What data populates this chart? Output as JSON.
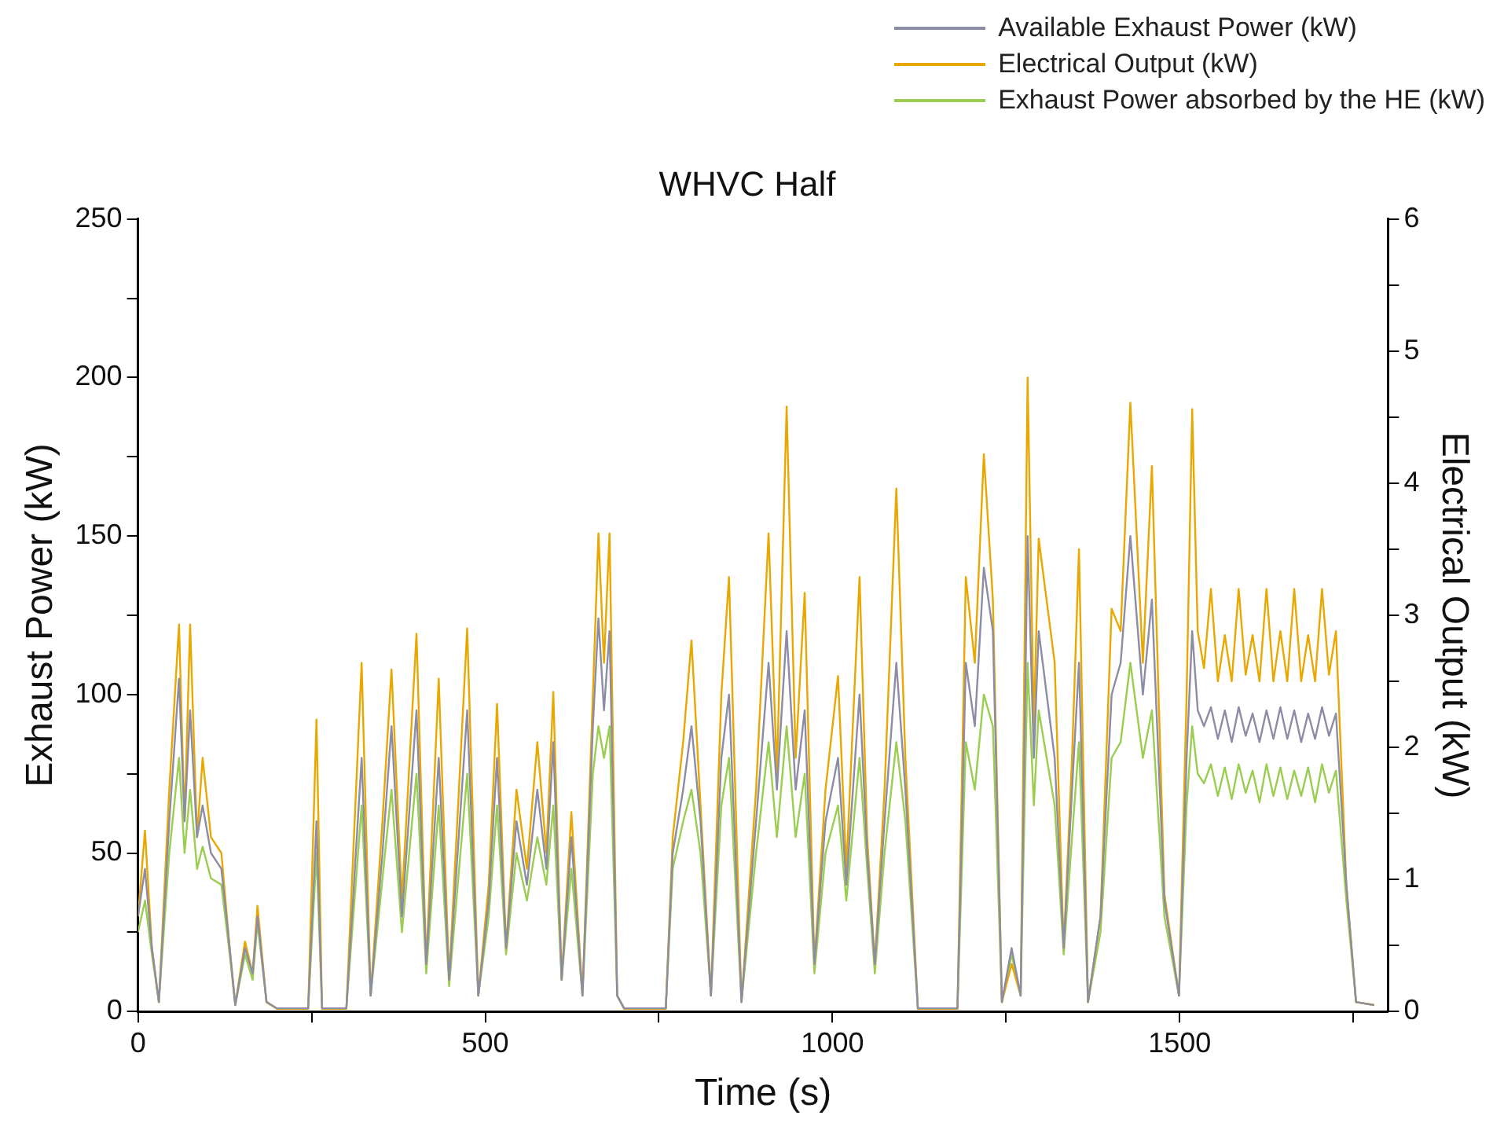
{
  "chart_data": {
    "type": "line",
    "title": "WHVC Half",
    "xlabel": "Time (s)",
    "ylabel": "Exhaust Power (kW)",
    "y2label": "Electrical Output (kW)",
    "legend": "top right",
    "grid": false,
    "marker": "none",
    "line_style": "solid",
    "xlim": [
      0,
      1800
    ],
    "xticks": [
      0,
      {
        "value": 250,
        "label": null
      },
      500,
      {
        "value": 750,
        "label": null
      },
      1000,
      {
        "value": 1250,
        "label": null
      },
      1500,
      {
        "value": 1750,
        "label": null
      }
    ],
    "ylim": [
      0,
      250
    ],
    "yticks": [
      0,
      {
        "value": 25,
        "label": null
      },
      50,
      {
        "value": 75,
        "label": null
      },
      100,
      {
        "value": 125,
        "label": null
      },
      150,
      {
        "value": 175,
        "label": null
      },
      200,
      {
        "value": 225,
        "label": null
      },
      250
    ],
    "y2lim": [
      0,
      6
    ],
    "y2ticks": [
      0,
      {
        "value": 0.5,
        "label": null
      },
      1,
      {
        "value": 1.5,
        "label": null
      },
      2,
      {
        "value": 2.5,
        "label": null
      },
      3,
      {
        "value": 3.5,
        "label": null
      },
      4,
      {
        "value": 4.5,
        "label": null
      },
      5,
      {
        "value": 5.5,
        "label": null
      },
      6
    ],
    "x": [
      0,
      10,
      20,
      30,
      45,
      59,
      67,
      75,
      85,
      93,
      105,
      120,
      132,
      140,
      154,
      165,
      172,
      185,
      200,
      245,
      257,
      265,
      300,
      322,
      335,
      352,
      365,
      380,
      401,
      415,
      433,
      448,
      474,
      490,
      505,
      517,
      530,
      545,
      560,
      575,
      588,
      598,
      610,
      624,
      640,
      655,
      663,
      671,
      679,
      690,
      700,
      760,
      770,
      785,
      797,
      810,
      825,
      840,
      851,
      869,
      890,
      908,
      920,
      934,
      947,
      960,
      974,
      990,
      1008,
      1020,
      1039,
      1050,
      1061,
      1075,
      1092,
      1105,
      1123,
      1180,
      1192,
      1205,
      1218,
      1231,
      1244,
      1258,
      1271,
      1281,
      1290,
      1297,
      1320,
      1333,
      1345,
      1355,
      1368,
      1386,
      1402,
      1415,
      1429,
      1447,
      1460,
      1478,
      1499,
      1510,
      1518,
      1526,
      1535,
      1545,
      1555,
      1565,
      1575,
      1585,
      1595,
      1605,
      1615,
      1625,
      1635,
      1645,
      1655,
      1665,
      1675,
      1685,
      1695,
      1705,
      1715,
      1725,
      1740,
      1754,
      1780
    ],
    "series": [
      {
        "name": "Available Exhaust Power (kW)",
        "color": "#8c8ca6",
        "values": [
          30,
          45,
          20,
          3,
          60,
          105,
          60,
          95,
          55,
          65,
          50,
          45,
          20,
          2,
          20,
          12,
          30,
          3,
          1,
          1,
          60,
          1,
          1,
          80,
          5,
          50,
          90,
          30,
          95,
          15,
          80,
          10,
          95,
          5,
          35,
          80,
          20,
          60,
          40,
          70,
          45,
          85,
          10,
          55,
          5,
          90,
          124,
          95,
          120,
          5,
          1,
          1,
          50,
          70,
          90,
          60,
          5,
          80,
          100,
          3,
          60,
          110,
          70,
          120,
          70,
          95,
          15,
          60,
          80,
          40,
          100,
          50,
          15,
          60,
          110,
          70,
          1,
          1,
          110,
          90,
          140,
          120,
          3,
          20,
          5,
          150,
          80,
          120,
          80,
          20,
          70,
          110,
          3,
          30,
          100,
          110,
          150,
          100,
          130,
          35,
          5,
          80,
          120,
          95,
          90,
          96,
          86,
          95,
          85,
          96,
          87,
          94,
          85,
          95,
          86,
          96,
          86,
          95,
          85,
          94,
          86,
          96,
          87,
          94,
          40,
          3,
          2
        ]
      },
      {
        "name": "Electrical Output (kW)",
        "color": "#e8a800",
        "axis": "y2",
        "values": [
          0.72,
          1.37,
          0.48,
          0.07,
          1.68,
          2.93,
          1.44,
          2.93,
          1.32,
          1.92,
          1.32,
          1.2,
          0.48,
          0.05,
          0.53,
          0.29,
          0.8,
          0.07,
          0.02,
          0.02,
          2.21,
          0.02,
          0.02,
          2.64,
          0.12,
          1.44,
          2.59,
          0.84,
          2.86,
          0.36,
          2.52,
          0.24,
          2.9,
          0.12,
          0.96,
          2.33,
          0.48,
          1.68,
          1.08,
          2.04,
          1.2,
          2.42,
          0.24,
          1.51,
          0.12,
          2.4,
          3.62,
          2.64,
          3.62,
          0.12,
          0.02,
          0.02,
          1.32,
          2.04,
          2.81,
          1.56,
          0.12,
          2.4,
          3.29,
          0.07,
          1.68,
          3.62,
          1.8,
          4.58,
          1.92,
          3.17,
          0.36,
          1.68,
          2.54,
          1.08,
          3.29,
          1.32,
          0.36,
          1.68,
          3.96,
          1.92,
          0.02,
          0.02,
          3.29,
          2.64,
          4.22,
          3.12,
          0.07,
          0.36,
          0.12,
          4.8,
          2.16,
          3.58,
          2.64,
          0.48,
          1.92,
          3.5,
          0.07,
          0.72,
          3.05,
          2.88,
          4.61,
          2.64,
          4.13,
          0.89,
          0.12,
          2.4,
          4.56,
          2.88,
          2.6,
          3.2,
          2.5,
          2.85,
          2.5,
          3.2,
          2.55,
          2.85,
          2.5,
          3.2,
          2.5,
          2.88,
          2.5,
          3.2,
          2.5,
          2.85,
          2.5,
          3.2,
          2.55,
          2.88,
          0.96,
          0.07,
          0.05
        ]
      },
      {
        "name": "Exhaust Power absorbed by the HE (kW)",
        "color": "#9acd50",
        "values": [
          25,
          35,
          18,
          3,
          50,
          80,
          50,
          70,
          45,
          52,
          42,
          40,
          18,
          2,
          18,
          10,
          28,
          3,
          1,
          1,
          50,
          1,
          1,
          65,
          5,
          42,
          70,
          25,
          75,
          12,
          65,
          8,
          75,
          5,
          30,
          65,
          18,
          50,
          35,
          55,
          40,
          65,
          10,
          45,
          5,
          75,
          90,
          80,
          90,
          5,
          1,
          1,
          45,
          60,
          70,
          50,
          5,
          65,
          80,
          3,
          50,
          85,
          55,
          90,
          55,
          75,
          12,
          50,
          65,
          35,
          80,
          45,
          12,
          50,
          85,
          60,
          1,
          1,
          85,
          70,
          100,
          90,
          3,
          18,
          5,
          110,
          65,
          95,
          65,
          18,
          55,
          85,
          3,
          25,
          80,
          85,
          110,
          80,
          95,
          30,
          5,
          65,
          90,
          75,
          72,
          78,
          68,
          77,
          67,
          78,
          69,
          76,
          66,
          78,
          68,
          77,
          67,
          76,
          68,
          77,
          66,
          78,
          69,
          76,
          35,
          3,
          2
        ]
      }
    ]
  }
}
